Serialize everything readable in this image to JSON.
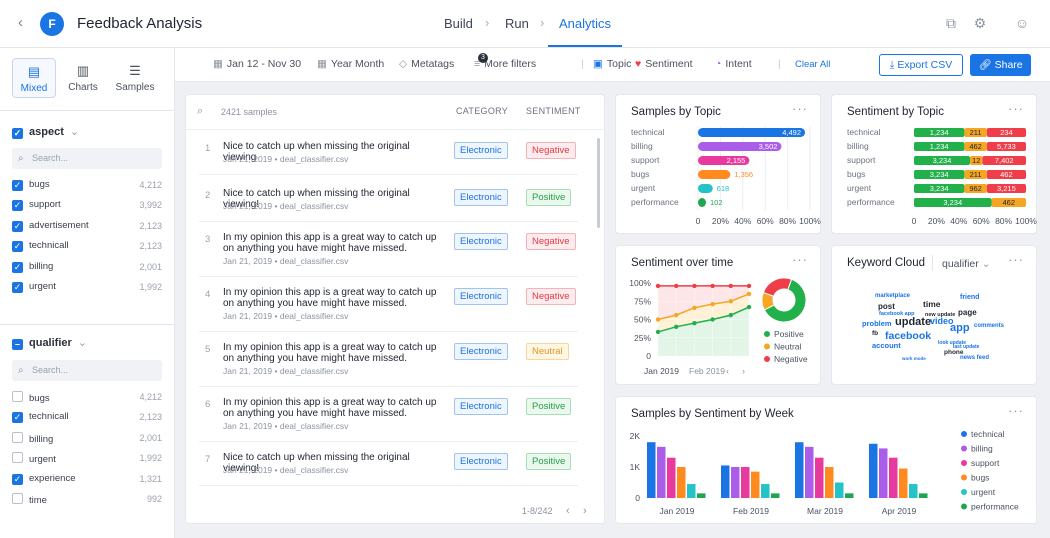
{
  "app": {
    "title": "Feedback Analysis",
    "logo_letter": "F"
  },
  "nav": {
    "tabs": [
      "Build",
      "Run",
      "Analytics"
    ],
    "active": "Analytics"
  },
  "sidebar": {
    "view_tabs": [
      "Mixed",
      "Charts",
      "Samples"
    ],
    "groups": [
      {
        "title": "aspect",
        "search_placeholder": "Search...",
        "items": [
          {
            "label": "bugs",
            "count": "4,212",
            "checked": true
          },
          {
            "label": "support",
            "count": "3,992",
            "checked": true
          },
          {
            "label": "advertisement",
            "count": "2,123",
            "checked": true
          },
          {
            "label": "technicall",
            "count": "2,123",
            "checked": true
          },
          {
            "label": "billing",
            "count": "2,001",
            "checked": true
          },
          {
            "label": "urgent",
            "count": "1,992",
            "checked": true
          }
        ]
      },
      {
        "title": "qualifier",
        "search_placeholder": "Search...",
        "items": [
          {
            "label": "bugs",
            "count": "4,212",
            "checked": false
          },
          {
            "label": "technicall",
            "count": "2,123",
            "checked": true
          },
          {
            "label": "billing",
            "count": "2,001",
            "checked": false
          },
          {
            "label": "urgent",
            "count": "1,992",
            "checked": false
          },
          {
            "label": "experience",
            "count": "1,321",
            "checked": true
          },
          {
            "label": "time",
            "count": "992",
            "checked": false
          }
        ]
      }
    ]
  },
  "filters": {
    "date_range": "Jan 12 - Nov 30",
    "granularity": "Year Month",
    "metatags": "Metatags",
    "more_filters": "More filters",
    "more_count": "3",
    "topic": "Topic",
    "sentiment": "Sentiment",
    "intent": "Intent",
    "clear_all": "Clear All",
    "export": "Export CSV",
    "share": "Share"
  },
  "samples": {
    "count_label": "2421 samples",
    "col_category": "CATEGORY",
    "col_sentiment": "SENTIMENT",
    "pagination": "1-8/242",
    "rows": [
      {
        "n": "1",
        "text": "Nice to catch up when missing the original viewing",
        "meta": "Jan 21, 2019 • deal_classifier.csv",
        "category": "Electronic",
        "sentiment": "Negative"
      },
      {
        "n": "2",
        "text": "Nice to catch up when missing the original viewing!",
        "meta": "Jan 21, 2019 • deal_classifier.csv",
        "category": "Electronic",
        "sentiment": "Positive"
      },
      {
        "n": "3",
        "text": "In my opinion this app is a great way to catch up on anything you have might have missed.",
        "meta": "Jan 21, 2019 • deal_classifier.csv",
        "category": "Electronic",
        "sentiment": "Negative"
      },
      {
        "n": "4",
        "text": "In my opinion this app is a great way to catch up on anything you have might have missed.",
        "meta": "Jan 21, 2019 • deal_classifier.csv",
        "category": "Electronic",
        "sentiment": "Negative"
      },
      {
        "n": "5",
        "text": "In my opinion this app is a great way to catch up on anything you have might have missed.",
        "meta": "Jan 21, 2019 • deal_classifier.csv",
        "category": "Electronic",
        "sentiment": "Neutral"
      },
      {
        "n": "6",
        "text": "In my opinion this app is a great way to catch up on anything you have might have missed.",
        "meta": "Jan 21, 2019 • deal_classifier.csv",
        "category": "Electronic",
        "sentiment": "Positive"
      },
      {
        "n": "7",
        "text": "Nice to catch up when missing the original viewing!",
        "meta": "Jan 21, 2019 • deal_classifier.csv",
        "category": "Electronic",
        "sentiment": "Positive"
      }
    ]
  },
  "colors": {
    "accent": "#1b74e4",
    "positive": "#22b04b",
    "neutral": "#f5a623",
    "negative": "#ef3e4a"
  },
  "chart_data": [
    {
      "id": "samples_by_topic",
      "type": "bar",
      "orientation": "horizontal",
      "title": "Samples by Topic",
      "categories": [
        "technical",
        "billing",
        "support",
        "bugs",
        "urgent",
        "performance"
      ],
      "values": [
        4492,
        3502,
        2155,
        1356,
        618,
        102
      ],
      "colors": [
        "#1b74e4",
        "#a95de8",
        "#e8399e",
        "#ff8a1f",
        "#23c3c7",
        "#20a550"
      ],
      "xticks": [
        "0",
        "20%",
        "40%",
        "60%",
        "80%",
        "100%"
      ],
      "xmax": 4700
    },
    {
      "id": "sentiment_by_topic",
      "type": "bar",
      "orientation": "horizontal",
      "stacked": true,
      "title": "Sentiment by Topic",
      "categories": [
        "technical",
        "billing",
        "support",
        "bugs",
        "urgent",
        "performance"
      ],
      "series": [
        {
          "name": "Positive",
          "values": [
            1234,
            1234,
            3234,
            3234,
            3234,
            3234
          ],
          "labels": [
            "1,234",
            "1,234",
            "3,234",
            "3,234",
            "3,234",
            "3,234"
          ]
        },
        {
          "name": "Neutral",
          "values": [
            211,
            462,
            12,
            211,
            962,
            462
          ],
          "labels": [
            "211",
            "462",
            "12",
            "211",
            "962",
            "462"
          ]
        },
        {
          "name": "Negative",
          "values": [
            234,
            5733,
            7402,
            462,
            3215,
            0
          ],
          "labels": [
            "234",
            "5,733",
            "7,402",
            "462",
            "3,215",
            ""
          ]
        }
      ],
      "xticks": [
        "0",
        "20%",
        "40%",
        "60%",
        "80%",
        "100%"
      ],
      "normalized": true
    },
    {
      "id": "sentiment_over_time",
      "type": "line",
      "title": "Sentiment over time",
      "yticks": [
        "100%",
        "75%",
        "50%",
        "25%",
        "0"
      ],
      "ylim": [
        0,
        100
      ],
      "x_label": "Jan 2019",
      "x_extra": "Feb 2019",
      "series": [
        {
          "name": "Negative",
          "values": [
            96,
            96,
            96,
            96,
            96,
            96
          ]
        },
        {
          "name": "Neutral",
          "values": [
            50,
            56,
            66,
            71,
            75,
            85
          ]
        },
        {
          "name": "Positive",
          "values": [
            33,
            40,
            45,
            50,
            56,
            67
          ]
        }
      ]
    },
    {
      "id": "sentiment_donut",
      "type": "pie",
      "donut": true,
      "labels": [
        "Positive",
        "Neutral",
        "Negative"
      ],
      "values": [
        62,
        13,
        25
      ]
    },
    {
      "id": "samples_by_sentiment_by_week",
      "type": "bar",
      "title": "Samples by Sentiment by Week",
      "categories": [
        "Jan 2019",
        "Feb 2019",
        "Mar 2019",
        "Apr 2019"
      ],
      "yticks": [
        "2K",
        "1K",
        "0"
      ],
      "ylim": [
        0,
        2000
      ],
      "series": [
        {
          "name": "technical",
          "values": [
            1800,
            1050,
            1800,
            1750
          ]
        },
        {
          "name": "billing",
          "values": [
            1650,
            1000,
            1650,
            1600
          ]
        },
        {
          "name": "support",
          "values": [
            1300,
            1000,
            1300,
            1300
          ]
        },
        {
          "name": "bugs",
          "values": [
            1000,
            850,
            1000,
            950
          ]
        },
        {
          "name": "urgent",
          "values": [
            450,
            450,
            500,
            450
          ]
        },
        {
          "name": "performance",
          "values": [
            150,
            150,
            150,
            150
          ]
        }
      ]
    }
  ],
  "keyword_cloud": {
    "title": "Keyword Cloud",
    "dropdown": "qualifier",
    "words": [
      "marketplace",
      "friend",
      "post",
      "time",
      "page",
      "facebook app",
      "video",
      "problem",
      "update",
      "app",
      "comments",
      "fb",
      "facebook",
      "account",
      "new update",
      "phone",
      "news feed",
      "look update",
      "work mode",
      "last update"
    ]
  }
}
